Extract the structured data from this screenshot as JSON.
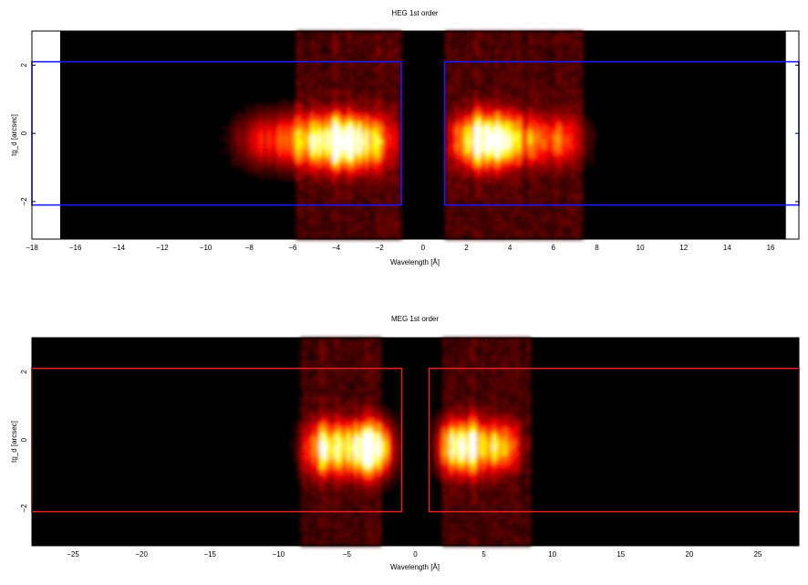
{
  "chart_data": [
    {
      "type": "heatmap",
      "title": "HEG 1st order",
      "xlabel": "Wavelength [Å]",
      "ylabel": "tg_d [arcsec]",
      "xlim": [
        -18,
        17.3
      ],
      "ylim": [
        -3.1,
        3
      ],
      "data_xlim": [
        -16.7,
        16.7
      ],
      "xticks": [
        -18,
        -16,
        -14,
        -12,
        -10,
        -8,
        -6,
        -4,
        -2,
        0,
        2,
        4,
        6,
        8,
        10,
        12,
        14,
        16
      ],
      "yticks": [
        -2,
        0,
        2
      ],
      "colormap": "hot",
      "gap_x": [
        -1.0,
        1.0
      ],
      "blobs": [
        {
          "x": -3.5,
          "y": -0.25,
          "sx": 1.3,
          "sy": 0.55,
          "amp": 1.0
        },
        {
          "x": -6.2,
          "y": -0.2,
          "sx": 1.3,
          "sy": 0.55,
          "amp": 0.45
        },
        {
          "x": -8.0,
          "y": -0.2,
          "sx": 0.7,
          "sy": 0.5,
          "amp": 0.12
        },
        {
          "x": 3.0,
          "y": -0.2,
          "sx": 1.1,
          "sy": 0.55,
          "amp": 1.0
        },
        {
          "x": 5.8,
          "y": -0.2,
          "sx": 1.1,
          "sy": 0.5,
          "amp": 0.45
        }
      ],
      "bands": [
        {
          "x0": -5.8,
          "x1": -1.0,
          "amp": 0.12
        },
        {
          "x0": 1.0,
          "x1": 7.3,
          "amp": 0.12
        }
      ],
      "extraction_regions": {
        "color": "#1a1aff",
        "y": [
          -2.1,
          2.1
        ],
        "boxes": [
          [
            -18,
            -1.0
          ],
          [
            1.0,
            17.3
          ]
        ]
      }
    },
    {
      "type": "heatmap",
      "title": "MEG 1st order",
      "xlabel": "Wavelength [Å]",
      "ylabel": "tg_d [arcsec]",
      "xlim": [
        -28,
        28
      ],
      "ylim": [
        -3.1,
        3
      ],
      "data_xlim": [
        -28,
        28
      ],
      "xticks": [
        -25,
        -20,
        -15,
        -10,
        -5,
        0,
        5,
        10,
        15,
        20,
        25
      ],
      "yticks": [
        -2,
        0,
        2
      ],
      "colormap": "hot",
      "gap_x": [
        -1.0,
        1.0
      ],
      "blobs": [
        {
          "x": -3.6,
          "y": -0.25,
          "sx": 1.4,
          "sy": 0.55,
          "amp": 1.0
        },
        {
          "x": -6.7,
          "y": -0.25,
          "sx": 1.1,
          "sy": 0.55,
          "amp": 0.7
        },
        {
          "x": 3.5,
          "y": -0.2,
          "sx": 1.3,
          "sy": 0.55,
          "amp": 0.9
        },
        {
          "x": 6.3,
          "y": -0.2,
          "sx": 1.0,
          "sy": 0.5,
          "amp": 0.55
        }
      ],
      "bands": [
        {
          "x0": -8.5,
          "x1": -2.5,
          "amp": 0.11
        },
        {
          "x0": 2.0,
          "x1": 8.5,
          "amp": 0.11
        }
      ],
      "extraction_regions": {
        "color": "#dd2222",
        "y": [
          -2.1,
          2.1
        ],
        "boxes": [
          [
            -28,
            -1.0
          ],
          [
            1.0,
            28
          ]
        ]
      }
    }
  ]
}
